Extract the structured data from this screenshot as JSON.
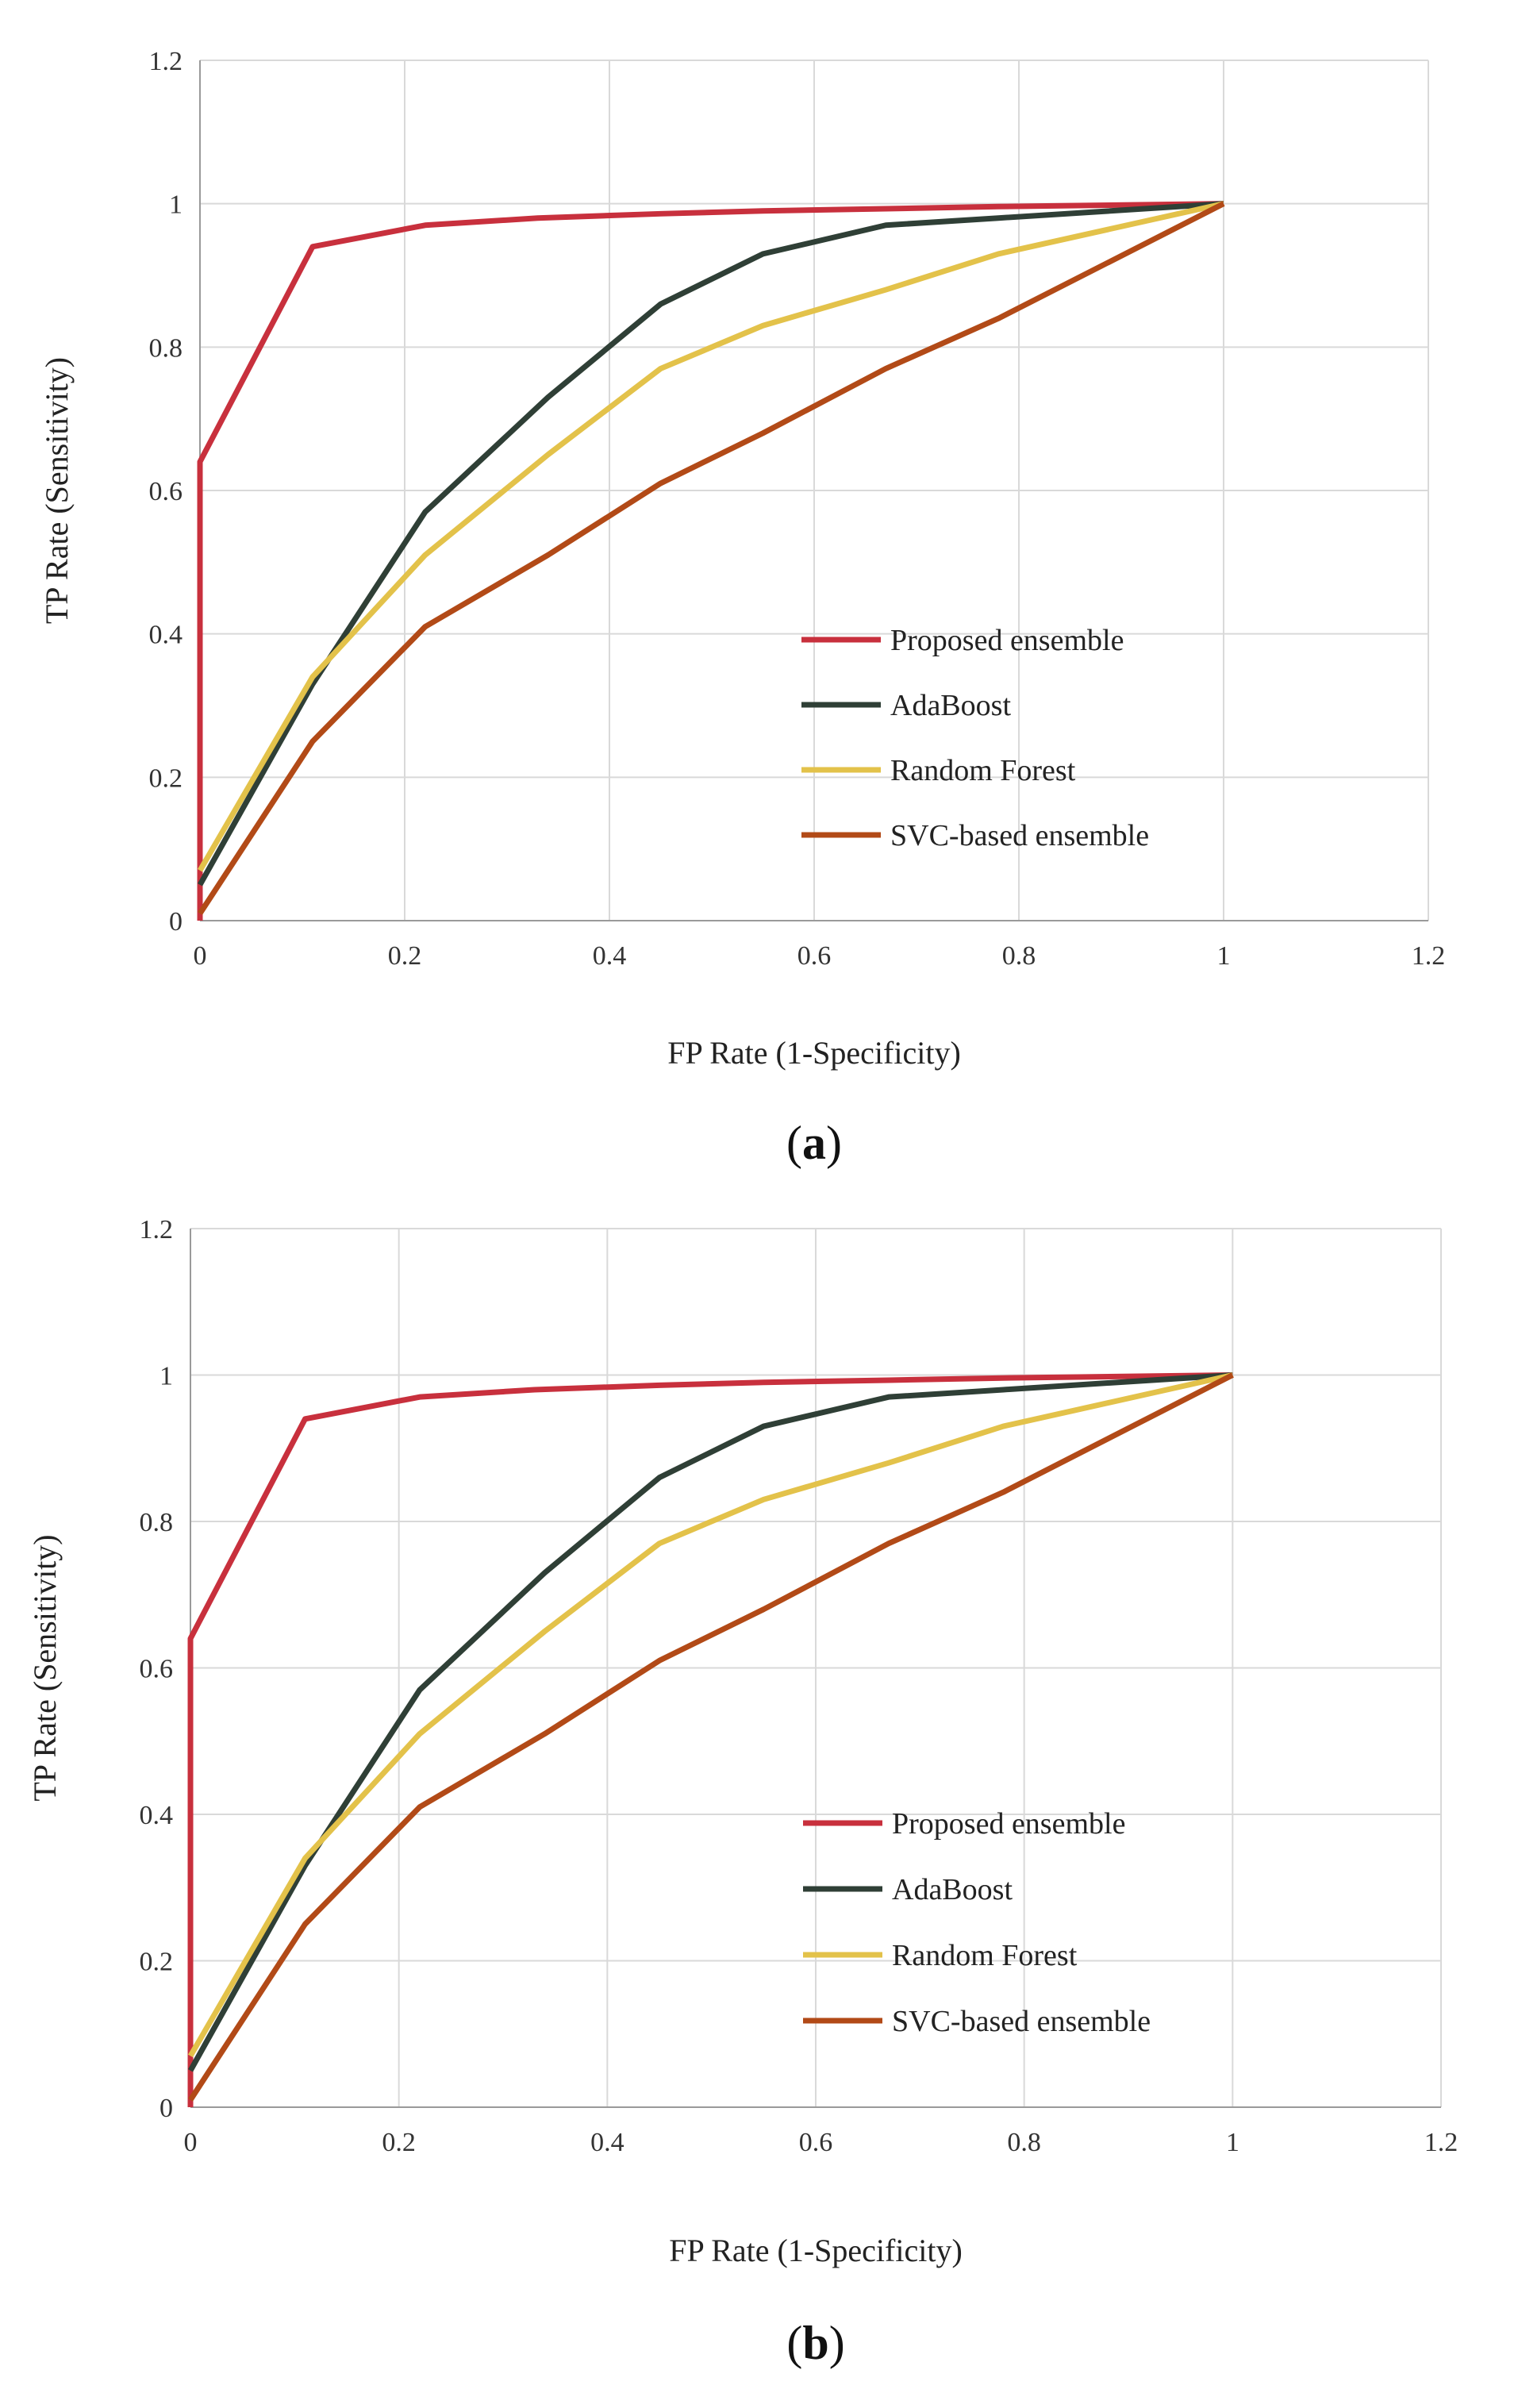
{
  "chart_data": [
    {
      "type": "line",
      "panel_label": "a",
      "xlabel": "FP Rate (1-Specificity)",
      "ylabel": "TP Rate (Sensitivity)",
      "xlim": [
        0,
        1.2
      ],
      "ylim": [
        0,
        1.2
      ],
      "xticks": [
        "0",
        "0.2",
        "0.4",
        "0.6",
        "0.8",
        "1",
        "1.2"
      ],
      "yticks": [
        "0",
        "0.2",
        "0.4",
        "0.6",
        "0.8",
        "1",
        "1.2"
      ],
      "grid": true,
      "legend_position": "lower-right",
      "series": [
        {
          "name": "Proposed ensemble",
          "color": "#c8303d",
          "x": [
            0,
            0,
            0.11,
            0.22,
            0.33,
            0.45,
            0.55,
            0.67,
            0.78,
            1
          ],
          "y": [
            0,
            0.64,
            0.94,
            0.97,
            0.98,
            0.986,
            0.99,
            0.993,
            0.996,
            1
          ]
        },
        {
          "name": "AdaBoost",
          "color": "#2f3f36",
          "x": [
            0,
            0.11,
            0.22,
            0.34,
            0.45,
            0.55,
            0.67,
            0.78,
            1
          ],
          "y": [
            0.05,
            0.33,
            0.57,
            0.73,
            0.86,
            0.93,
            0.97,
            0.98,
            1
          ]
        },
        {
          "name": "Random Forest",
          "color": "#e3c24a",
          "x": [
            0,
            0.11,
            0.22,
            0.34,
            0.45,
            0.55,
            0.67,
            0.78,
            1
          ],
          "y": [
            0.07,
            0.34,
            0.51,
            0.65,
            0.77,
            0.83,
            0.88,
            0.93,
            1
          ]
        },
        {
          "name": "SVC-based ensemble",
          "color": "#b24a17",
          "x": [
            0,
            0.11,
            0.22,
            0.34,
            0.45,
            0.55,
            0.67,
            0.78,
            1
          ],
          "y": [
            0.01,
            0.25,
            0.41,
            0.51,
            0.61,
            0.68,
            0.77,
            0.84,
            1
          ]
        }
      ]
    },
    {
      "type": "line",
      "panel_label": "b",
      "xlabel": "FP Rate (1-Specificity)",
      "ylabel": "TP Rate (Sensitivity)",
      "xlim": [
        0,
        1.2
      ],
      "ylim": [
        0,
        1.2
      ],
      "xticks": [
        "0",
        "0.2",
        "0.4",
        "0.6",
        "0.8",
        "1",
        "1.2"
      ],
      "yticks": [
        "0",
        "0.2",
        "0.4",
        "0.6",
        "0.8",
        "1",
        "1.2"
      ],
      "grid": true,
      "legend_position": "lower-right",
      "series": [
        {
          "name": "Proposed ensemble",
          "color": "#c8303d",
          "x": [
            0,
            0,
            0.11,
            0.22,
            0.33,
            0.45,
            0.55,
            0.67,
            0.78,
            1
          ],
          "y": [
            0,
            0.64,
            0.94,
            0.97,
            0.98,
            0.986,
            0.99,
            0.993,
            0.996,
            1
          ]
        },
        {
          "name": "AdaBoost",
          "color": "#2f3f36",
          "x": [
            0,
            0.11,
            0.22,
            0.34,
            0.45,
            0.55,
            0.67,
            0.78,
            1
          ],
          "y": [
            0.05,
            0.33,
            0.57,
            0.73,
            0.86,
            0.93,
            0.97,
            0.98,
            1
          ]
        },
        {
          "name": "Random Forest",
          "color": "#e3c24a",
          "x": [
            0,
            0.11,
            0.22,
            0.34,
            0.45,
            0.55,
            0.67,
            0.78,
            1
          ],
          "y": [
            0.07,
            0.34,
            0.51,
            0.65,
            0.77,
            0.83,
            0.88,
            0.93,
            1
          ]
        },
        {
          "name": "SVC-based ensemble",
          "color": "#b24a17",
          "x": [
            0,
            0.11,
            0.22,
            0.34,
            0.45,
            0.55,
            0.67,
            0.78,
            1
          ],
          "y": [
            0.01,
            0.25,
            0.41,
            0.51,
            0.61,
            0.68,
            0.77,
            0.84,
            1
          ]
        }
      ]
    }
  ]
}
